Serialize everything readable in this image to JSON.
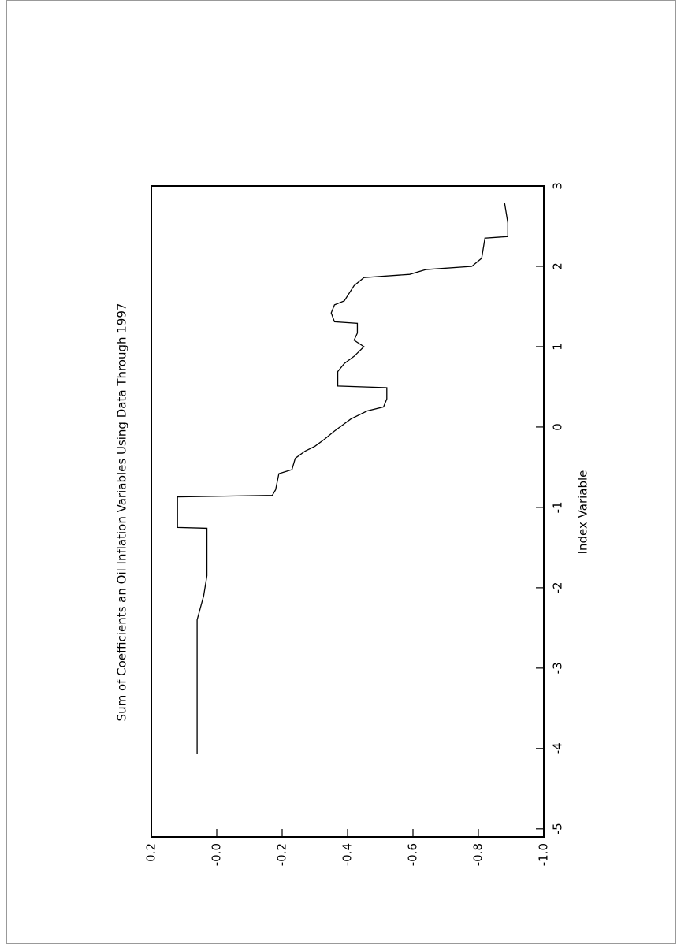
{
  "chart_data": {
    "type": "line",
    "title": "Sum of Coefficients an Oil Inflation Variables Using Data Through 1997",
    "x_label": "Index Variable",
    "x": [
      -4.07,
      -2.4,
      -2.1,
      -1.85,
      -1.26,
      -1.25,
      -0.87,
      -0.85,
      -0.78,
      -0.58,
      -0.53,
      -0.39,
      -0.3,
      -0.24,
      -0.15,
      -0.05,
      0.1,
      0.2,
      0.25,
      0.35,
      0.49,
      0.51,
      0.69,
      0.79,
      0.88,
      1.0,
      1.08,
      1.17,
      1.29,
      1.31,
      1.42,
      1.52,
      1.57,
      1.76,
      1.86,
      1.9,
      1.96,
      2.0,
      2.1,
      2.35,
      2.37,
      2.54,
      2.79
    ],
    "series": [
      {
        "name": "sum",
        "color": "#000000",
        "values": [
          0.06,
          0.06,
          0.04,
          0.03,
          0.03,
          0.12,
          0.12,
          -0.17,
          -0.18,
          -0.19,
          -0.23,
          -0.24,
          -0.27,
          -0.3,
          -0.33,
          -0.36,
          -0.41,
          -0.46,
          -0.51,
          -0.52,
          -0.52,
          -0.37,
          -0.37,
          -0.39,
          -0.42,
          -0.45,
          -0.42,
          -0.43,
          -0.43,
          -0.36,
          -0.35,
          -0.36,
          -0.39,
          -0.42,
          -0.45,
          -0.59,
          -0.64,
          -0.78,
          -0.81,
          -0.82,
          -0.89,
          -0.89,
          -0.88
        ]
      }
    ],
    "xlim": [
      -5.1,
      3
    ],
    "xticks": [
      -5,
      -4,
      -3,
      -2,
      -1,
      0,
      1,
      2,
      3
    ],
    "ylim": [
      0.2,
      -1.0
    ],
    "yticks": [
      0.2,
      {
        "value": 0,
        "label": "-0.0"
      },
      -0.2,
      -0.4,
      -0.6,
      -0.8,
      {
        "value": -1.0,
        "label": "-1.0"
      }
    ]
  }
}
